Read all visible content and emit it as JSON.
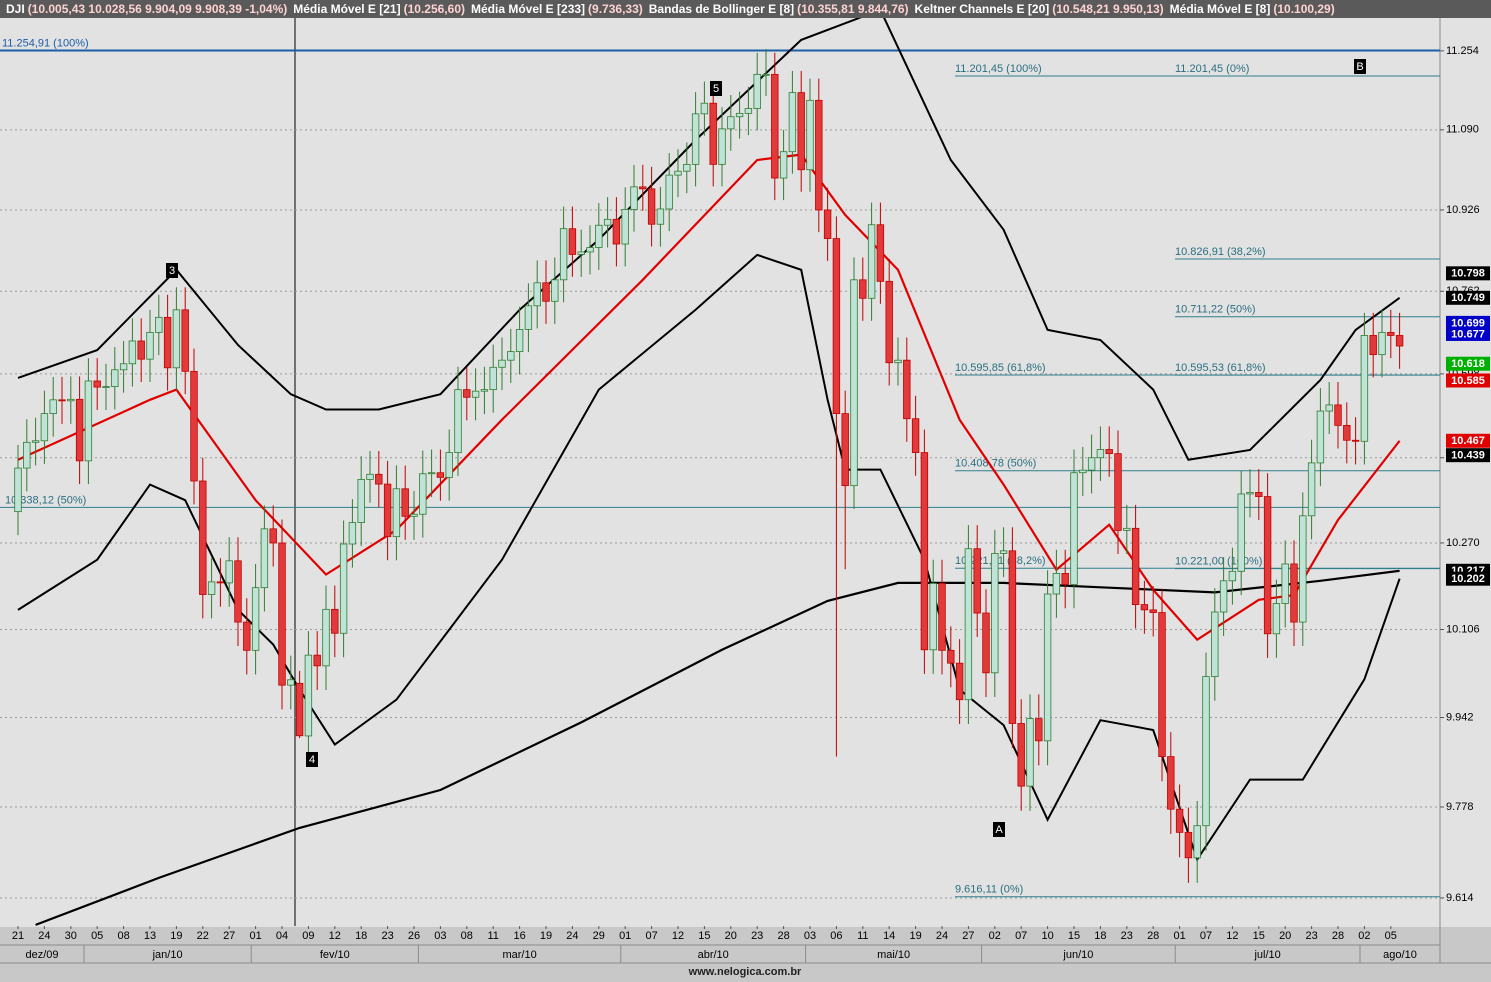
{
  "chart_data": {
    "type": "candlestick",
    "header": [
      {
        "name": "DJI",
        "values": "(10.005,43  10.028,56  9.904,09  9.908,39  -1,04%)"
      },
      {
        "name": "Média Móvel E [21]",
        "values": "(10.256,60)"
      },
      {
        "name": "Média Móvel E [233]",
        "values": "(9.736,33)"
      },
      {
        "name": "Bandas de Bollinger E [8]",
        "values": "(10.355,81  9.844,76)"
      },
      {
        "name": "Keltner Channels E [20]",
        "values": "(10.548,21  9.950,13)"
      },
      {
        "name": "Média Móvel E [8]",
        "values": "(10.100,29)"
      }
    ],
    "categories": [
      "21",
      null,
      null,
      "24",
      null,
      null,
      "30",
      null,
      null,
      "05",
      null,
      null,
      "08",
      null,
      null,
      "13",
      null,
      null,
      "19",
      null,
      null,
      "22",
      null,
      null,
      "27",
      null,
      null,
      "01",
      null,
      null,
      "04",
      null,
      null,
      "09",
      null,
      null,
      "12",
      null,
      null,
      "18",
      null,
      null,
      "23",
      null,
      null,
      "26",
      null,
      null,
      "03",
      null,
      null,
      "08",
      null,
      null,
      "11",
      null,
      null,
      "16",
      null,
      null,
      "19",
      null,
      null,
      "24",
      null,
      null,
      "29",
      null,
      null,
      "01",
      null,
      null,
      "07",
      null,
      null,
      "12",
      null,
      null,
      "15",
      null,
      null,
      "20",
      null,
      null,
      "23",
      null,
      null,
      "28",
      null,
      null,
      "03",
      null,
      null,
      "06",
      null,
      null,
      "11",
      null,
      null,
      "14",
      null,
      null,
      "19",
      null,
      null,
      "24",
      null,
      null,
      "27",
      null,
      null,
      "02",
      null,
      null,
      "07",
      null,
      null,
      "10",
      null,
      null,
      "15",
      null,
      null,
      "18",
      null,
      null,
      "23",
      null,
      null,
      "28",
      null,
      null,
      "01",
      null,
      null,
      "07",
      null,
      null,
      "12",
      null,
      null,
      "15",
      null,
      null,
      "20",
      null,
      null,
      "23",
      null,
      null,
      "28",
      null,
      null,
      "02",
      null,
      null,
      "05",
      null
    ],
    "months": [
      "dez/09",
      "jan/10",
      "fev/10",
      "mar/10",
      "abr/10",
      "mai/10",
      "jun/10",
      "jul/10",
      "ago/10"
    ],
    "open": [
      10330,
      10414,
      10464,
      10467,
      10520,
      10547,
      10545,
      10548,
      10428,
      10584,
      10572,
      10573,
      10606,
      10618,
      10663,
      10627,
      10680,
      10710,
      10610,
      10725,
      10603,
      10389,
      10172,
      10196,
      10194,
      10236,
      10120,
      10067,
      10185,
      10297,
      10270,
      10002,
      10005.43,
      9908,
      10058,
      10038,
      10144,
      10099,
      10268,
      10309,
      10392,
      10402,
      10383,
      10282,
      10374,
      10321,
      10325,
      10403,
      10405,
      10396,
      10444,
      10567,
      10552,
      10564,
      10567,
      10611,
      10625,
      10642,
      10686,
      10733,
      10779,
      10742,
      10785,
      10888,
      10836,
      10841,
      10850,
      10895,
      10907,
      10857,
      10927,
      10973,
      10969,
      10897,
      10928,
      10997,
      11005,
      11019,
      11123,
      11145,
      11019,
      11092,
      11117,
      11124,
      11134,
      11205,
      11205,
      10991,
      11045,
      11167,
      11008,
      11151,
      10926,
      10868,
      10520,
      10380,
      10785,
      10748,
      10896,
      10782,
      10620,
      10625,
      10510,
      10444,
      10068,
      10193,
      10067,
      10043,
      9975,
      10259,
      10137,
      10025,
      10250,
      10255,
      9931,
      9816,
      9940,
      9899,
      10173,
      10212,
      10191,
      10405,
      10410,
      10434,
      10450,
      10442,
      10294,
      10298,
      10153,
      10143,
      10138,
      9870,
      9774,
      9732,
      9686,
      9744,
      10018,
      10139,
      10198,
      10216,
      10364,
      10367,
      10359,
      10098,
      10155,
      10230,
      10120,
      10322,
      10424,
      10525,
      10537,
      10497,
      10468,
      10466,
      10674,
      10636,
      10680,
      10674
    ],
    "high": [
      10459,
      10509,
      10512,
      10565,
      10592,
      10592,
      10593,
      10593,
      10629,
      10629,
      10618,
      10651,
      10663,
      10708,
      10708,
      10725,
      10755,
      10755,
      10770,
      10770,
      10648,
      10434,
      10241,
      10241,
      10281,
      10281,
      10165,
      10230,
      10342,
      10342,
      10315,
      10057,
      10028.56,
      10103,
      10103,
      10189,
      10189,
      10313,
      10354,
      10437,
      10447,
      10447,
      10428,
      10419,
      10419,
      10370,
      10448,
      10450,
      10450,
      10489,
      10612,
      10612,
      10609,
      10612,
      10656,
      10670,
      10687,
      10731,
      10778,
      10824,
      10824,
      10830,
      10933,
      10933,
      10886,
      10895,
      10940,
      10952,
      10952,
      10972,
      11018,
      11018,
      11014,
      10973,
      11042,
      11050,
      11064,
      11168,
      11190,
      11190,
      11137,
      11162,
      11169,
      11179,
      11250,
      11258,
      11250,
      11090,
      11212,
      11212,
      11196,
      11196,
      10971,
      10913,
      10565,
      10830,
      10830,
      10941,
      10941,
      10827,
      10670,
      10670,
      10555,
      10489,
      10238,
      10238,
      10112,
      10088,
      10304,
      10304,
      10182,
      10295,
      10300,
      10300,
      9976,
      9985,
      9985,
      10218,
      10257,
      10257,
      10450,
      10455,
      10479,
      10495,
      10495,
      10487,
      10343,
      10343,
      10198,
      10188,
      10183,
      9915,
      9819,
      9777,
      9789,
      10063,
      10184,
      10243,
      10261,
      10409,
      10412,
      10412,
      10404,
      10200,
      10275,
      10275,
      10367,
      10469,
      10570,
      10582,
      10582,
      10542,
      10513,
      10719,
      10719,
      10725,
      10725,
      10719
    ],
    "low": [
      10285,
      10369,
      10419,
      10422,
      10475,
      10500,
      10500,
      10383,
      10383,
      10527,
      10527,
      10528,
      10561,
      10573,
      10582,
      10582,
      10635,
      10565,
      10565,
      10558,
      10344,
      10127,
      10127,
      10149,
      10149,
      10075,
      10022,
      10022,
      10140,
      10225,
      9957,
      9957,
      9904.09,
      9863,
      9993,
      9993,
      10054,
      10054,
      10223,
      10264,
      10347,
      10338,
      10237,
      10237,
      10276,
      10276,
      10280,
      10358,
      10351,
      10351,
      10399,
      10507,
      10507,
      10519,
      10522,
      10566,
      10580,
      10597,
      10641,
      10688,
      10697,
      10697,
      10740,
      10791,
      10791,
      10796,
      10805,
      10850,
      10812,
      10812,
      10882,
      10924,
      10852,
      10852,
      10883,
      10952,
      10960,
      10974,
      11078,
      10974,
      10974,
      11047,
      11072,
      11079,
      11089,
      11160,
      10946,
      10946,
      11000,
      10963,
      10963,
      10881,
      10823,
      9870,
      10220,
      10335,
      10703,
      10703,
      10737,
      10575,
      10575,
      10465,
      10399,
      10023,
      10023,
      10022,
      9998,
      9930,
      9930,
      10092,
      9980,
      9980,
      10205,
      9886,
      9771,
      9771,
      9854,
      9854,
      10128,
      10146,
      10146,
      10360,
      10365,
      10389,
      10397,
      10249,
      10249,
      10108,
      10098,
      10093,
      9825,
      9729,
      9687,
      9641,
      9641,
      9699,
      9973,
      10094,
      10153,
      10171,
      10319,
      10314,
      10053,
      10053,
      10110,
      10075,
      10075,
      10277,
      10379,
      10480,
      10452,
      10423,
      10421,
      10421,
      10591,
      10591,
      10629,
      10608
    ],
    "close": [
      10414,
      10464,
      10467,
      10520,
      10547,
      10545,
      10548,
      10428,
      10584,
      10572,
      10573,
      10606,
      10618,
      10663,
      10627,
      10680,
      10710,
      10610,
      10725,
      10603,
      10389,
      10172,
      10196,
      10194,
      10236,
      10120,
      10067,
      10185,
      10297,
      10270,
      10002,
      10012,
      9908.39,
      10058,
      10038,
      10144,
      10099,
      10268,
      10309,
      10392,
      10402,
      10383,
      10282,
      10374,
      10321,
      10325,
      10403,
      10405,
      10396,
      10444,
      10567,
      10552,
      10564,
      10567,
      10611,
      10625,
      10642,
      10686,
      10733,
      10779,
      10742,
      10785,
      10888,
      10836,
      10841,
      10850,
      10895,
      10907,
      10857,
      10927,
      10973,
      10969,
      10897,
      10928,
      10997,
      11005,
      11019,
      11123,
      11145,
      11019,
      11092,
      11117,
      11124,
      11134,
      11205,
      11205,
      10991,
      11045,
      11167,
      11008,
      11151,
      10926,
      10868,
      10520,
      10380,
      10785,
      10748,
      10896,
      10782,
      10620,
      10625,
      10510,
      10444,
      10068,
      10193,
      10067,
      10043,
      9975,
      10259,
      10137,
      10025,
      10250,
      10255,
      9931,
      9816,
      9940,
      9899,
      10173,
      10212,
      10191,
      10405,
      10410,
      10434,
      10450,
      10442,
      10294,
      10298,
      10153,
      10143,
      10138,
      9870,
      9774,
      9732,
      9686,
      9744,
      10018,
      10139,
      10198,
      10216,
      10364,
      10367,
      10359,
      10098,
      10155,
      10230,
      10120,
      10322,
      10424,
      10525,
      10537,
      10497,
      10468,
      10466,
      10674,
      10636,
      10680,
      10674,
      10653
    ],
    "up_color": "#bfe3d6",
    "up_edge": "#2e7d32",
    "down_color": "#e23a3a",
    "down_edge": "#c00000",
    "overlays": [
      {
        "color": "#000000",
        "width": 2.2,
        "x": [
          2,
          16,
          32,
          48,
          64,
          80,
          92,
          100,
          112,
          124,
          136,
          148,
          157
        ],
        "values": [
          9566,
          9650,
          9740,
          9809,
          9933,
          10068,
          10160,
          10194,
          10194,
          10185,
          10176,
          10198,
          10217
        ]
      },
      {
        "color": "#000000",
        "width": 2,
        "x": [
          0,
          9,
          18,
          25,
          31,
          35,
          41,
          48,
          57,
          66,
          77,
          89,
          98,
          106,
          112,
          117,
          123,
          129,
          133,
          140,
          148,
          152,
          157
        ],
        "values": [
          10590,
          10645,
          10805,
          10655,
          10558,
          10528,
          10528,
          10558,
          10725,
          10866,
          11069,
          11277,
          11340,
          11028,
          10886,
          10685,
          10665,
          10567,
          10430,
          10449,
          10586,
          10685,
          10749
        ]
      },
      {
        "color": "#000000",
        "width": 2,
        "x": [
          0,
          9,
          15,
          19,
          25,
          29,
          32,
          36,
          43,
          55,
          66,
          77,
          84,
          89,
          92,
          94,
          98,
          103,
          107,
          112,
          117,
          123,
          129,
          134,
          140,
          146,
          153,
          157
        ],
        "values": [
          10143,
          10238,
          10382,
          10352,
          10143,
          10078,
          9994,
          9892,
          9975,
          10238,
          10567,
          10725,
          10835,
          10805,
          10547,
          10411,
          10411,
          10238,
          9994,
          9928,
          9755,
          9937,
          9919,
          9683,
          9828,
          9828,
          10013,
          10202
        ]
      },
      {
        "color": "#e00000",
        "width": 2.2,
        "x": [
          0,
          15,
          18,
          27,
          35,
          43,
          55,
          71,
          84,
          89,
          94,
          100,
          107,
          112,
          118,
          124,
          129,
          134,
          141,
          145,
          150,
          157
        ],
        "values": [
          10430,
          10547,
          10567,
          10352,
          10210,
          10295,
          10508,
          10785,
          11028,
          11039,
          10916,
          10805,
          10508,
          10382,
          10219,
          10305,
          10181,
          10087,
          10162,
          10171,
          10314,
          10467
        ]
      }
    ],
    "annotations": [
      {
        "value": 11254.91,
        "label": "11.254,91 (100%)"
      },
      {
        "value": 11201.45,
        "label": "11.201,45 (100%)"
      },
      {
        "value": 11201.45,
        "label": "11.201,45 (0%)"
      },
      {
        "value": 10826.91,
        "label": "10.826,91 (38,2%)"
      },
      {
        "value": 10711.22,
        "label": "10.711,22 (50%)"
      },
      {
        "value": 10595.85,
        "label": "10.595,85 (61,8%)"
      },
      {
        "value": 10595.53,
        "label": "10.595,53 (61,8%)"
      },
      {
        "value": 10408.78,
        "label": "10.408,78 (50%)"
      },
      {
        "value": 10338.12,
        "label": "10.338,12 (50%)"
      },
      {
        "value": 10221.71,
        "label": "10.221,71 (38,2%)"
      },
      {
        "value": 10221.0,
        "label": "10.221,00 (100%)"
      },
      {
        "value": 9616.11,
        "label": "9.616,11 (0%)"
      }
    ],
    "wave_labels": [
      "3",
      "4",
      "5",
      "A",
      "B"
    ],
    "price_tags": [
      {
        "value": 10798,
        "label": "10.798",
        "color": "#000000"
      },
      {
        "value": 10749,
        "label": "10.749",
        "color": "#000000"
      },
      {
        "value": 10699,
        "label": "10.699",
        "color": "#0000c8"
      },
      {
        "value": 10677,
        "label": "10.677",
        "color": "#0000c8"
      },
      {
        "value": 10618,
        "label": "10.618",
        "color": "#00b000"
      },
      {
        "value": 10585,
        "label": "10.585",
        "color": "#e00000"
      },
      {
        "value": 10467,
        "label": "10.467",
        "color": "#e00000"
      },
      {
        "value": 10439,
        "label": "10.439",
        "color": "#000000"
      },
      {
        "value": 10217,
        "label": "10.217",
        "color": "#000000"
      },
      {
        "value": 10202,
        "label": "10.202",
        "color": "#000000"
      }
    ],
    "log_scale": true,
    "grid": true,
    "ylim": [
      9564,
      11323
    ],
    "yticks": [
      {
        "value": 11254,
        "label": "11.254"
      },
      {
        "value": 11090,
        "label": "11.090"
      },
      {
        "value": 10926,
        "label": "10.926"
      },
      {
        "value": 10762,
        "label": "10.762"
      },
      {
        "value": 10598,
        "label": "10.598"
      },
      {
        "value": 10434,
        "label": "10.434"
      },
      {
        "value": 10270,
        "label": "10.270"
      },
      {
        "value": 10106,
        "label": "10.106"
      },
      {
        "value": 9942,
        "label": "9.942"
      },
      {
        "value": 9778,
        "label": "9.778"
      },
      {
        "value": 9614,
        "label": "9.614"
      }
    ],
    "footer": "www.nelogica.com.br"
  }
}
